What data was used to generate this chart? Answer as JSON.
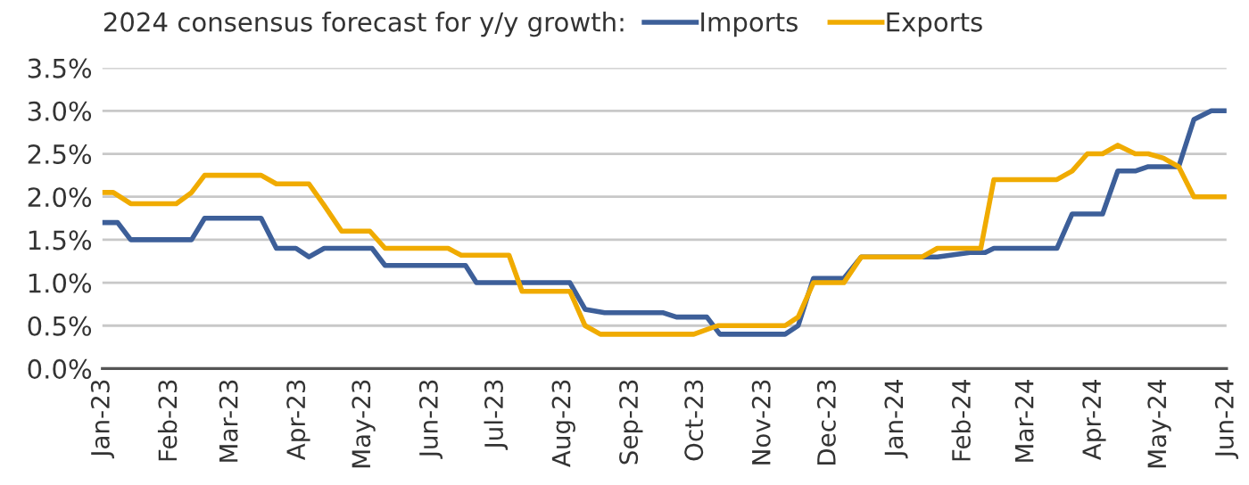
{
  "chart_data": {
    "type": "line",
    "title": "2024 consensus forecast for y/y growth:",
    "xlim": [
      "2023-01-01",
      "2024-06-01"
    ],
    "xticks": [
      {
        "value": "2023-01-01",
        "label": "Jan-23"
      },
      {
        "value": "2023-02-01",
        "label": "Feb-23"
      },
      {
        "value": "2023-03-01",
        "label": "Mar-23"
      },
      {
        "value": "2023-04-01",
        "label": "Apr-23"
      },
      {
        "value": "2023-05-01",
        "label": "May-23"
      },
      {
        "value": "2023-06-01",
        "label": "Jun-23"
      },
      {
        "value": "2023-07-01",
        "label": "Jul-23"
      },
      {
        "value": "2023-08-01",
        "label": "Aug-23"
      },
      {
        "value": "2023-09-01",
        "label": "Sep-23"
      },
      {
        "value": "2023-10-01",
        "label": "Oct-23"
      },
      {
        "value": "2023-11-01",
        "label": "Nov-23"
      },
      {
        "value": "2023-12-01",
        "label": "Dec-23"
      },
      {
        "value": "2024-01-01",
        "label": "Jan-24"
      },
      {
        "value": "2024-02-01",
        "label": "Feb-24"
      },
      {
        "value": "2024-03-01",
        "label": "Mar-24"
      },
      {
        "value": "2024-04-01",
        "label": "Apr-24"
      },
      {
        "value": "2024-05-01",
        "label": "May-24"
      },
      {
        "value": "2024-06-01",
        "label": "Jun-24"
      }
    ],
    "ylim": [
      0,
      3.5
    ],
    "yticks": [
      {
        "value": 0,
        "label": "0.0%"
      },
      {
        "value": 0.5,
        "label": "0.5%"
      },
      {
        "value": 1,
        "label": "1.0%"
      },
      {
        "value": 1.5,
        "label": "1.5%"
      },
      {
        "value": 2,
        "label": "2.0%"
      },
      {
        "value": 2.5,
        "label": "2.5%"
      },
      {
        "value": 3,
        "label": "3.0%"
      },
      {
        "value": 3.5,
        "label": "3.5%"
      }
    ],
    "grid": "y",
    "legend": "top",
    "line_style": "solid",
    "marker": "none",
    "series": [
      {
        "name": "Imports",
        "color": "#3d5f99",
        "x": [
          "2023-01-01",
          "2023-01-08",
          "2023-01-14",
          "2023-02-11",
          "2023-02-17",
          "2023-03-15",
          "2023-03-22",
          "2023-03-31",
          "2023-04-06",
          "2023-04-13",
          "2023-05-05",
          "2023-05-11",
          "2023-06-17",
          "2023-06-22",
          "2023-08-04",
          "2023-08-11",
          "2023-08-20",
          "2023-09-16",
          "2023-09-22",
          "2023-10-06",
          "2023-10-12",
          "2023-11-11",
          "2023-11-17",
          "2023-11-24",
          "2023-12-08",
          "2023-12-16",
          "2024-01-13",
          "2024-01-20",
          "2024-02-04",
          "2024-02-11",
          "2024-02-15",
          "2024-03-15",
          "2024-03-22",
          "2024-04-05",
          "2024-04-12",
          "2024-04-20",
          "2024-04-26",
          "2024-05-10",
          "2024-05-17",
          "2024-05-25",
          "2024-06-01"
        ],
        "values": [
          1.7,
          1.7,
          1.5,
          1.5,
          1.75,
          1.75,
          1.4,
          1.4,
          1.3,
          1.4,
          1.4,
          1.2,
          1.2,
          1.0,
          1.0,
          0.69,
          0.65,
          0.65,
          0.6,
          0.6,
          0.4,
          0.4,
          0.5,
          1.05,
          1.05,
          1.3,
          1.3,
          1.3,
          1.35,
          1.35,
          1.4,
          1.4,
          1.8,
          1.8,
          2.3,
          2.3,
          2.35,
          2.35,
          2.9,
          3.0,
          3.0
        ]
      },
      {
        "name": "Exports",
        "color": "#f0ab00",
        "x": [
          "2023-01-01",
          "2023-01-06",
          "2023-01-14",
          "2023-02-04",
          "2023-02-11",
          "2023-02-17",
          "2023-03-15",
          "2023-03-22",
          "2023-04-06",
          "2023-04-13",
          "2023-04-21",
          "2023-05-04",
          "2023-05-11",
          "2023-06-09",
          "2023-06-15",
          "2023-07-07",
          "2023-07-13",
          "2023-08-04",
          "2023-08-11",
          "2023-08-18",
          "2023-09-30",
          "2023-10-11",
          "2023-11-11",
          "2023-11-17",
          "2023-11-24",
          "2023-12-08",
          "2023-12-16",
          "2024-01-13",
          "2024-01-20",
          "2024-02-09",
          "2024-02-15",
          "2024-03-15",
          "2024-03-22",
          "2024-03-29",
          "2024-04-05",
          "2024-04-12",
          "2024-04-20",
          "2024-04-26",
          "2024-05-03",
          "2024-05-10",
          "2024-05-17",
          "2024-06-01"
        ],
        "values": [
          2.05,
          2.05,
          1.92,
          1.92,
          2.05,
          2.25,
          2.25,
          2.15,
          2.15,
          1.9,
          1.6,
          1.6,
          1.4,
          1.4,
          1.32,
          1.32,
          0.9,
          0.9,
          0.5,
          0.4,
          0.4,
          0.5,
          0.5,
          0.6,
          1.0,
          1.0,
          1.3,
          1.3,
          1.4,
          1.4,
          2.2,
          2.2,
          2.3,
          2.5,
          2.5,
          2.6,
          2.5,
          2.5,
          2.45,
          2.35,
          2.0,
          2.0
        ]
      }
    ]
  }
}
